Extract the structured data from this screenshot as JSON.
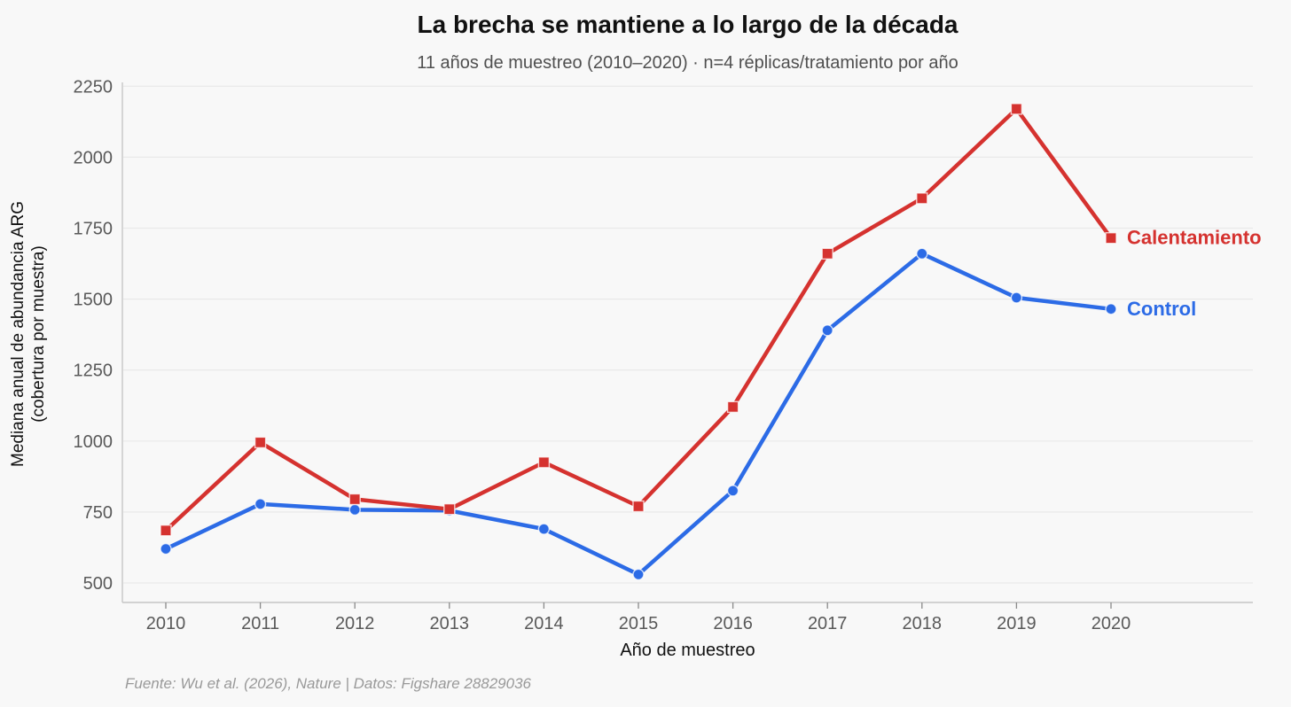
{
  "chart_data": {
    "type": "line",
    "title": "La brecha se mantiene a lo largo de la década",
    "subtitle": "11 años de muestreo (2010–2020) · n=4 réplicas/tratamiento por año",
    "xlabel": "Año de muestreo",
    "ylabel_lines": [
      "Mediana anual de abundancia ARG",
      "(cobertura por muestra)"
    ],
    "x": [
      2010,
      2011,
      2012,
      2013,
      2014,
      2015,
      2016,
      2017,
      2018,
      2019,
      2020
    ],
    "series": [
      {
        "name": "Calentamiento",
        "color": "#d5322f",
        "marker": "square",
        "values": [
          685,
          995,
          795,
          760,
          925,
          770,
          1120,
          1660,
          1855,
          2170,
          1715
        ]
      },
      {
        "name": "Control",
        "color": "#2c6be6",
        "marker": "circle",
        "values": [
          620,
          778,
          758,
          755,
          690,
          530,
          825,
          1390,
          1660,
          1505,
          1465
        ]
      }
    ],
    "ylim": [
      500,
      2250
    ],
    "yticks": [
      500,
      750,
      1000,
      1250,
      1500,
      1750,
      2000,
      2250
    ],
    "grid": "horizontal",
    "legend_position": "direct-labels-right"
  },
  "footer": {
    "source": "Fuente: Wu et al. (2026), Nature | Datos: Figshare 28829036"
  },
  "colors": {
    "background": "#f8f8f8",
    "grid": "#e9e9e9",
    "spine": "#c6c6c6",
    "tick": "#8a8a8a",
    "tick_label": "#595959"
  }
}
